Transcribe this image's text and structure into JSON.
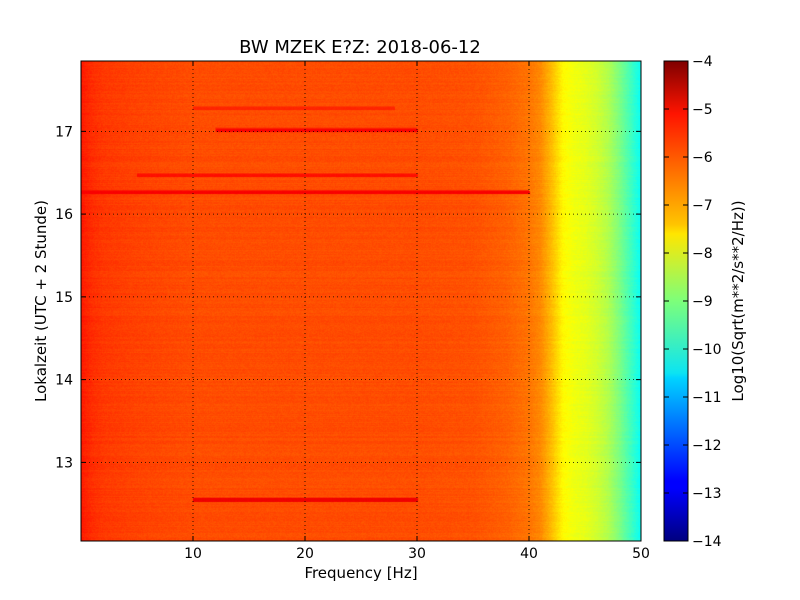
{
  "chart_data": {
    "type": "heatmap",
    "title": "BW MZEK E?Z: 2018-06-12",
    "xlabel": "Frequency [Hz]",
    "ylabel": "Lokalzeit (UTC + 2 Stunde)",
    "xlim": [
      0,
      50
    ],
    "ylim": [
      17.85,
      12.05
    ],
    "x_ticks": [
      10,
      20,
      30,
      40,
      50
    ],
    "x_tick_labels": [
      "10",
      "20",
      "30",
      "40",
      "50"
    ],
    "y_ticks": [
      13,
      14,
      15,
      16,
      17
    ],
    "y_tick_labels": [
      "13",
      "14",
      "15",
      "16",
      "17"
    ],
    "grid": true,
    "colorbar": {
      "label": "Log10(Sqrt(m**2/s**2/Hz))",
      "colormap": "jet",
      "range": [
        -14,
        -4
      ],
      "ticks": [
        -4,
        -5,
        -6,
        -7,
        -8,
        -9,
        -10,
        -11,
        -12,
        -13,
        -14
      ],
      "tick_labels": [
        "−4",
        "−5",
        "−6",
        "−7",
        "−8",
        "−9",
        "−10",
        "−11",
        "−12",
        "−13",
        "−14"
      ]
    },
    "frequency_profile": {
      "frequency_hz": [
        0,
        1,
        2,
        5,
        10,
        20,
        30,
        35,
        38,
        40,
        41,
        42,
        43,
        44,
        45,
        46,
        47,
        48,
        49,
        50
      ],
      "level_log10": [
        -5.5,
        -5.7,
        -5.8,
        -5.9,
        -6.0,
        -6.0,
        -6.0,
        -6.05,
        -6.2,
        -6.4,
        -6.6,
        -7.1,
        -7.7,
        -7.9,
        -8.0,
        -8.2,
        -8.5,
        -9.0,
        -9.6,
        -10.2
      ]
    },
    "band_events": [
      {
        "time_h": 12.55,
        "freq_range_hz": [
          10,
          30
        ],
        "level_log10": -5.1
      },
      {
        "time_h": 16.27,
        "freq_range_hz": [
          0,
          40
        ],
        "level_log10": -5.2
      },
      {
        "time_h": 16.47,
        "freq_range_hz": [
          5,
          30
        ],
        "level_log10": -5.4
      },
      {
        "time_h": 17.02,
        "freq_range_hz": [
          12,
          30
        ],
        "level_log10": -5.2
      },
      {
        "time_h": 17.28,
        "freq_range_hz": [
          10,
          28
        ],
        "level_log10": -5.6
      }
    ]
  }
}
